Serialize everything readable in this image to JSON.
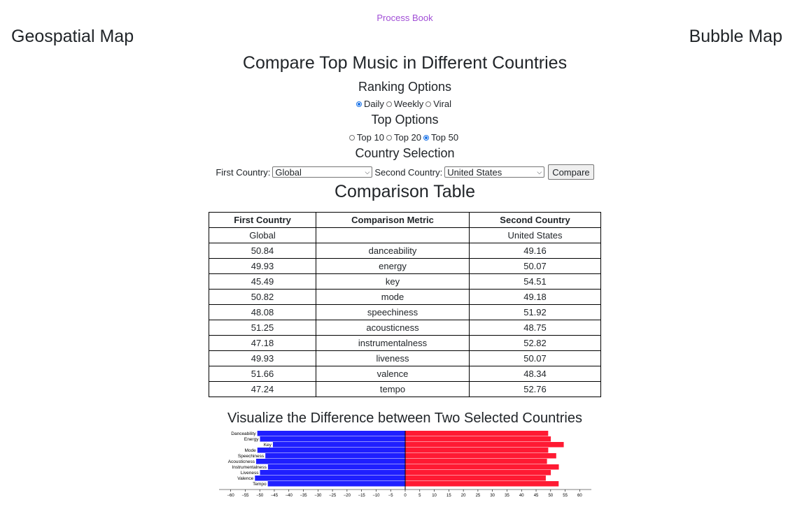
{
  "header": {
    "process_book": "Process Book",
    "geospatial_map": "Geospatial Map",
    "bubble_map": "Bubble Map"
  },
  "main_title": "Compare Top Music in Different Countries",
  "ranking": {
    "heading": "Ranking Options",
    "options": [
      {
        "label": "Daily",
        "checked": true
      },
      {
        "label": "Weekly",
        "checked": false
      },
      {
        "label": "Viral",
        "checked": false
      }
    ]
  },
  "top_options": {
    "heading": "Top Options",
    "options": [
      {
        "label": "Top 10",
        "checked": false
      },
      {
        "label": "Top 20",
        "checked": false
      },
      {
        "label": "Top 50",
        "checked": true
      }
    ]
  },
  "country_selection": {
    "heading": "Country Selection",
    "first_label": "First Country:",
    "first_value": "Global",
    "second_label": "Second Country:",
    "second_value": "United States",
    "compare_button": "Compare"
  },
  "table": {
    "title": "Comparison Table",
    "headers": [
      "First Country",
      "Comparison Metric",
      "Second Country"
    ],
    "country_row": [
      "Global",
      "",
      "United States"
    ],
    "rows": [
      [
        "50.84",
        "danceability",
        "49.16"
      ],
      [
        "49.93",
        "energy",
        "50.07"
      ],
      [
        "45.49",
        "key",
        "54.51"
      ],
      [
        "50.82",
        "mode",
        "49.18"
      ],
      [
        "48.08",
        "speechiness",
        "51.92"
      ],
      [
        "51.25",
        "acousticness",
        "48.75"
      ],
      [
        "47.18",
        "instrumentalness",
        "52.82"
      ],
      [
        "49.93",
        "liveness",
        "50.07"
      ],
      [
        "51.66",
        "valence",
        "48.34"
      ],
      [
        "47.24",
        "tempo",
        "52.76"
      ]
    ]
  },
  "viz_title": "Visualize the Difference between Two Selected Countries",
  "chart_data": {
    "type": "bar",
    "orientation": "horizontal-diverging",
    "categories": [
      "Danceability",
      "Energy",
      "Key",
      "Mode",
      "Speechiness",
      "Acousticness",
      "Instrumentalness",
      "Liveness",
      "Valence",
      "Tempo"
    ],
    "series": [
      {
        "values": [
          -50.84,
          -49.93,
          -45.49,
          -50.82,
          -48.08,
          -51.25,
          -47.18,
          -49.93,
          -51.66,
          -47.24
        ],
        "color": "#1f1fff"
      },
      {
        "values": [
          49.16,
          50.07,
          54.51,
          49.18,
          51.92,
          48.75,
          52.82,
          50.07,
          48.34,
          52.76
        ],
        "color": "#ff1a33"
      }
    ],
    "x_ticks": [
      "−60",
      "−55",
      "−50",
      "−45",
      "−40",
      "−35",
      "−30",
      "−25",
      "−20",
      "−15",
      "−10",
      "−5",
      "0",
      "5",
      "10",
      "15",
      "20",
      "25",
      "30",
      "35",
      "40",
      "45",
      "50",
      "55",
      "60"
    ],
    "xlim": [
      -64,
      64
    ]
  }
}
